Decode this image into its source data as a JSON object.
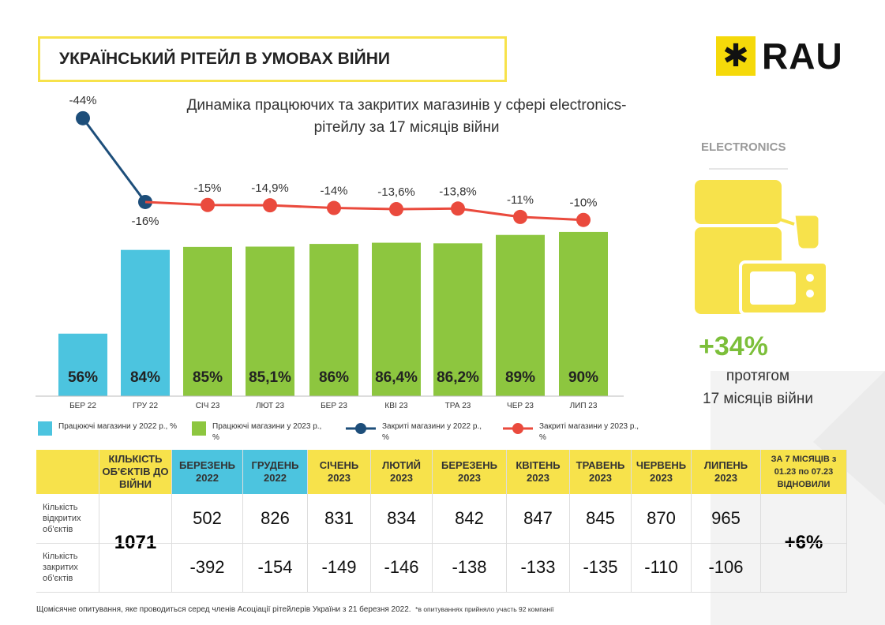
{
  "header": {
    "title": "УКРАЇНСЬКИЙ РІТЕЙЛ В УМОВАХ ВІЙНИ",
    "logo_text": "RAU"
  },
  "colors": {
    "bar_2022": "#4cc4df",
    "bar_2023": "#8dc63f",
    "line_2022": "#1d4e7a",
    "line_2023": "#ea4a3d",
    "accent": "#f7e24b"
  },
  "side": {
    "label": "ELECTRONICS",
    "icon": "appliances-icon",
    "percent": "+34%",
    "text1": "протягом",
    "text2": "17 місяців війни"
  },
  "chart_data": {
    "type": "bar+line",
    "title": "Динаміка працюючих та закритих магазинів у сфері electronics-рітейлу за 17 місяців війни",
    "categories": [
      "БЕР 22",
      "ГРУ 22",
      "СІЧ 23",
      "ЛЮТ 23",
      "БЕР 23",
      "КВІ 23",
      "ТРА 23",
      "ЧЕР 23",
      "ЛИП 23"
    ],
    "series": [
      {
        "name": "Працюючі магазини у 2022 р., %",
        "type": "bar",
        "values": [
          56,
          84,
          null,
          null,
          null,
          null,
          null,
          null,
          null
        ],
        "labels": [
          "56%",
          "84%",
          "",
          "",
          "",
          "",
          "",
          "",
          ""
        ]
      },
      {
        "name": "Працюючі магазини у 2023 р., %",
        "type": "bar",
        "values": [
          null,
          null,
          85,
          85.1,
          86,
          86.4,
          86.2,
          89,
          90
        ],
        "labels": [
          "",
          "",
          "85%",
          "85,1%",
          "86%",
          "86,4%",
          "86,2%",
          "89%",
          "90%"
        ]
      },
      {
        "name": "Закриті магазини у 2022 р., %",
        "type": "line",
        "values": [
          -44,
          -16,
          null,
          null,
          null,
          null,
          null,
          null,
          null
        ],
        "labels": [
          "-44%",
          "-16%",
          "",
          "",
          "",
          "",
          "",
          "",
          ""
        ]
      },
      {
        "name": "Закриті магазини у 2023 р., %",
        "type": "line",
        "values": [
          null,
          -16,
          -15,
          -14.9,
          -14,
          -13.6,
          -13.8,
          -11,
          -10
        ],
        "labels": [
          "",
          "",
          "-15%",
          "-14,9%",
          "-14%",
          "-13,6%",
          "-13,8%",
          "-11%",
          "-10%"
        ]
      }
    ],
    "legend": "bottom"
  },
  "table": {
    "corner": "",
    "prewar_header": "КІЛЬКІСТЬ ОБ'ЄКТІВ ДО ВІЙНИ",
    "months": [
      "БЕРЕЗЕНЬ 2022",
      "ГРУДЕНЬ 2022",
      "СІЧЕНЬ 2023",
      "ЛЮТИЙ 2023",
      "БЕРЕЗЕНЬ 2023",
      "КВІТЕНЬ 2023",
      "ТРАВЕНЬ 2023",
      "ЧЕРВЕНЬ 2023",
      "ЛИПЕНЬ 2023"
    ],
    "recovered_header": "ЗА 7 МІСЯЦІВ з 01.23 по 07.23 ВІДНОВИЛИ",
    "row_open_label": "Кількість відкритих об'єктів",
    "row_closed_label": "Кількість закритих об'єктів",
    "prewar": "1071",
    "open": [
      "502",
      "826",
      "831",
      "834",
      "842",
      "847",
      "845",
      "870",
      "965"
    ],
    "closed": [
      "-392",
      "-154",
      "-149",
      "-146",
      "-138",
      "-133",
      "-135",
      "-110",
      "-106"
    ],
    "recovered": "+6%"
  },
  "footer": {
    "note": "Щомісячне опитування, яке проводиться серед членів Асоціації рітейлерів України з 21 березня 2022.",
    "note2": "*в опитуваннях прийняло участь 92 компанії"
  }
}
